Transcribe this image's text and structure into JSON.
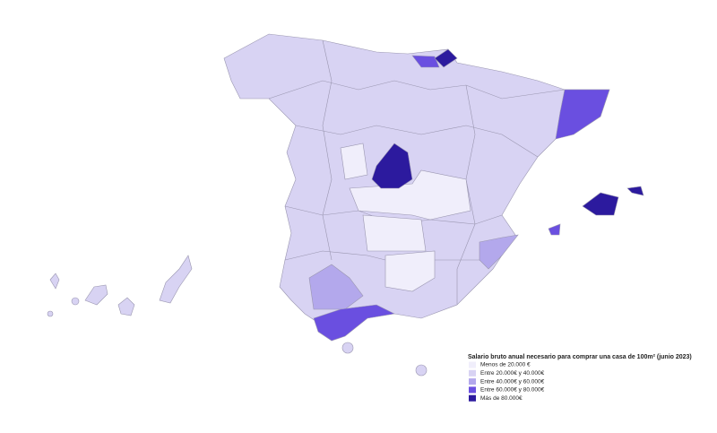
{
  "legend": {
    "title": "Salario bruto anual necesario para comprar una casa de 100m² (junio 2023)",
    "items": [
      {
        "label": "Menos de 20.000 €",
        "color": "#f0eefb"
      },
      {
        "label": "Entre 20.000€ y 40.000€",
        "color": "#d8d3f3"
      },
      {
        "label": "Entre 40.000€ y 60.000€",
        "color": "#b3a8ec"
      },
      {
        "label": "Entre 60.000€ y 80.000€",
        "color": "#6a4fe0"
      },
      {
        "label": "Más de 80.000€",
        "color": "#2c1a9e"
      }
    ]
  }
}
